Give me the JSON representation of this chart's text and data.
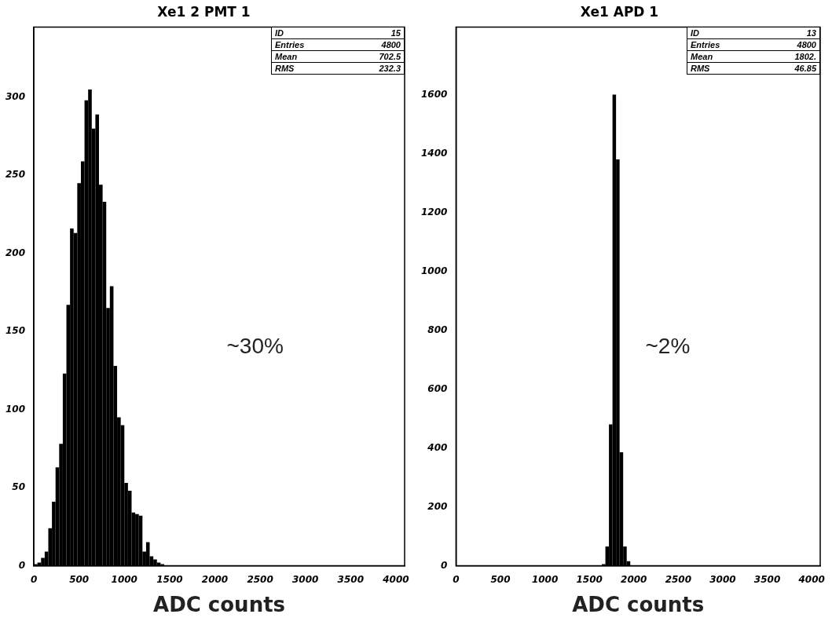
{
  "chart_data": [
    {
      "type": "histogram",
      "title": "Xe1 2 PMT 1",
      "xlabel": "ADC counts",
      "color": "#000000",
      "bins": [
        0,
        40,
        80,
        120,
        160,
        200,
        240,
        280,
        320,
        360,
        400,
        440,
        480,
        520,
        560,
        600,
        640,
        680,
        720,
        760,
        800,
        840,
        880,
        920,
        960,
        1000,
        1040,
        1080,
        1120,
        1160,
        1200,
        1240,
        1280,
        1320,
        1360,
        1400,
        1440
      ],
      "values": [
        1,
        2,
        5,
        9,
        24,
        41,
        63,
        78,
        123,
        167,
        216,
        213,
        245,
        259,
        298,
        305,
        280,
        289,
        244,
        233,
        165,
        179,
        128,
        95,
        90,
        53,
        48,
        34,
        33,
        32,
        9,
        15,
        6,
        4,
        2,
        1
      ],
      "xlim": [
        0,
        4096
      ],
      "xticks": [
        0,
        500,
        1000,
        1500,
        2000,
        2500,
        3000,
        3500,
        4000
      ],
      "ylim": [
        0,
        345
      ],
      "yticks": [
        0,
        50,
        100,
        150,
        200,
        250,
        300
      ],
      "grid": false,
      "legend": false,
      "annotations": [
        "ID 15",
        "Entries 4800",
        "Mean 702.5",
        "RMS 232.3",
        "~30%"
      ]
    },
    {
      "type": "histogram",
      "title": "Xe1 APD 1",
      "xlabel": "ADC counts",
      "color": "#000000",
      "bins": [
        1640,
        1680,
        1720,
        1760,
        1800,
        1840,
        1880,
        1920,
        1960
      ],
      "values": [
        5,
        65,
        480,
        1600,
        1380,
        385,
        65,
        15
      ],
      "xlim": [
        0,
        4096
      ],
      "xticks": [
        0,
        500,
        1000,
        1500,
        2000,
        2500,
        3000,
        3500,
        4000
      ],
      "ylim": [
        0,
        1830
      ],
      "yticks": [
        0,
        200,
        400,
        600,
        800,
        1000,
        1200,
        1400,
        1600
      ],
      "grid": false,
      "legend": false,
      "annotations": [
        "ID 13",
        "Entries 4800",
        "Mean 1802.",
        "RMS 46.85",
        "~2%"
      ]
    }
  ]
}
